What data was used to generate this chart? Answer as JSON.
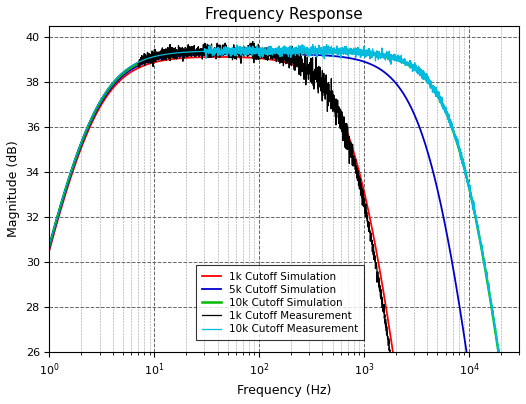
{
  "title": "Frequency Response",
  "xlabel": "Frequency (Hz)",
  "ylabel": "Magnitude (dB)",
  "xlim": [
    1,
    30000
  ],
  "ylim": [
    26,
    40.5
  ],
  "yticks": [
    26,
    28,
    30,
    32,
    34,
    36,
    38,
    40
  ],
  "gain_db": 39.15,
  "f_low": 2.5,
  "cutoff_1k": 1000,
  "cutoff_5k": 5000,
  "cutoff_10k": 10000,
  "order_lp": 2,
  "noise_amplitude": 0.15,
  "colors": {
    "sim_1k": "#ff0000",
    "sim_5k": "#0000cc",
    "sim_10k": "#00bb00",
    "meas_1k": "#000000",
    "meas_10k": "#00bbdd"
  },
  "legend_labels": [
    "1k Cutoff Simulation",
    "5k Cutoff Simulation",
    "10k Cutoff Simulation",
    "1k Cutoff Measurement",
    "10k Cutoff Measurement"
  ],
  "bg": "#ffffff",
  "figsize": [
    5.26,
    4.04
  ],
  "dpi": 100
}
